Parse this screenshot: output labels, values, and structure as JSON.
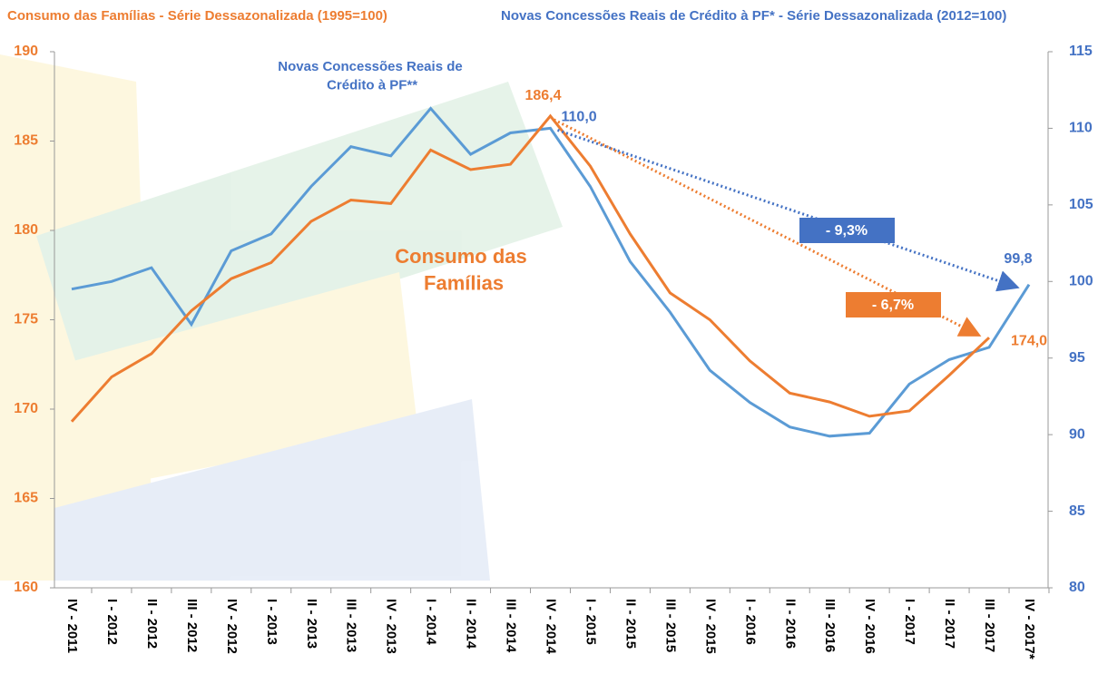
{
  "chart_data": {
    "type": "line",
    "y_label": "Consumo das Famílias  - Série Dessazonalizada (1995=100)",
    "y2_label": "Novas Concessões Reais de Crédito à PF* - Série Dessazonalizada (2012=100)",
    "categories": [
      "IV - 2011",
      "I - 2012",
      "II - 2012",
      "III - 2012",
      "IV - 2012",
      "I - 2013",
      "II - 2013",
      "III - 2013",
      "IV - 2013",
      "I - 2014",
      "II - 2014",
      "III - 2014",
      "IV - 2014",
      "I - 2015",
      "II - 2015",
      "III - 2015",
      "IV - 2015",
      "I - 2016",
      "II - 2016",
      "III - 2016",
      "IV - 2016",
      "I - 2017",
      "II - 2017",
      "III - 2017",
      "IV - 2017*"
    ],
    "series": [
      {
        "name": "Consumo das Famílias",
        "color": "#ed7d31",
        "axis": "y",
        "values": [
          169.3,
          171.8,
          173.1,
          175.5,
          177.3,
          178.2,
          180.5,
          181.7,
          181.5,
          184.5,
          183.4,
          183.7,
          186.4,
          183.6,
          179.8,
          176.5,
          175.0,
          172.7,
          170.9,
          170.4,
          169.6,
          169.9,
          171.9,
          174.0,
          null
        ],
        "value_labels": [
          null,
          null,
          null,
          null,
          null,
          null,
          null,
          null,
          null,
          null,
          null,
          null,
          "186,4",
          null,
          null,
          null,
          null,
          null,
          null,
          null,
          null,
          null,
          null,
          "174,0",
          null
        ]
      },
      {
        "name": "Novas Concessões Reais de Crédito à PF**",
        "color": "#5b9bd5",
        "axis": "y2",
        "values": [
          99.5,
          100.0,
          100.9,
          97.2,
          102.0,
          103.1,
          106.2,
          108.8,
          108.2,
          111.3,
          108.3,
          109.7,
          110.0,
          106.2,
          101.3,
          98.0,
          94.2,
          92.1,
          90.5,
          89.9,
          90.1,
          93.3,
          94.9,
          95.7,
          99.8
        ],
        "value_labels": [
          null,
          null,
          null,
          null,
          null,
          null,
          null,
          null,
          null,
          null,
          null,
          null,
          "110,0",
          null,
          null,
          null,
          null,
          null,
          null,
          null,
          null,
          null,
          null,
          null,
          "99,8"
        ]
      }
    ],
    "annotations": [
      {
        "text": "- 9,3%",
        "color": "#4472c4"
      },
      {
        "text": "- 6,7%",
        "color": "#ed7d31"
      }
    ],
    "ylim": [
      160,
      190
    ],
    "yticks": [
      160,
      165,
      170,
      175,
      180,
      185,
      190
    ],
    "y2lim": [
      80,
      115
    ],
    "y2ticks": [
      80,
      85,
      90,
      95,
      100,
      105,
      110,
      115
    ],
    "grid": false
  }
}
